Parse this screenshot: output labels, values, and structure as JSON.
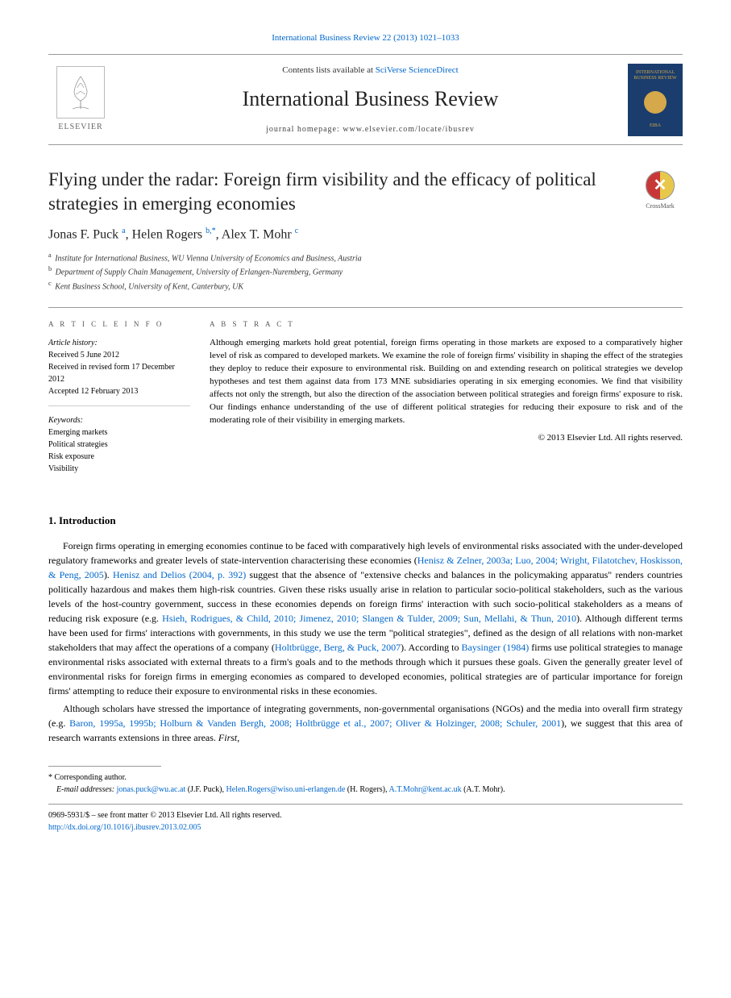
{
  "header": {
    "journal_ref": "International Business Review 22 (2013) 1021–1033",
    "contents_prefix": "Contents lists available at ",
    "contents_link": "SciVerse ScienceDirect",
    "journal_title": "International Business Review",
    "homepage_prefix": "journal homepage: ",
    "homepage_url": "www.elsevier.com/locate/ibusrev",
    "elsevier_label": "ELSEVIER",
    "cover_title": "INTERNATIONAL BUSINESS REVIEW",
    "cover_bottom": "EIBA"
  },
  "crossmark": {
    "label": "CrossMark"
  },
  "article": {
    "title": "Flying under the radar: Foreign firm visibility and the efficacy of political strategies in emerging economies",
    "authors_html": "Jonas F. Puck <sup>a</sup>, Helen Rogers <sup>b,*</sup>, Alex T. Mohr <sup>c</sup>",
    "affiliations": [
      {
        "sup": "a",
        "text": "Institute for International Business, WU Vienna University of Economics and Business, Austria"
      },
      {
        "sup": "b",
        "text": "Department of Supply Chain Management, University of Erlangen-Nuremberg, Germany"
      },
      {
        "sup": "c",
        "text": "Kent Business School, University of Kent, Canterbury, UK"
      }
    ]
  },
  "info": {
    "heading": "A R T I C L E   I N F O",
    "history_label": "Article history:",
    "history_lines": [
      "Received 5 June 2012",
      "Received in revised form 17 December 2012",
      "Accepted 12 February 2013"
    ],
    "keywords_label": "Keywords:",
    "keywords": [
      "Emerging markets",
      "Political strategies",
      "Risk exposure",
      "Visibility"
    ]
  },
  "abstract": {
    "heading": "A B S T R A C T",
    "text": "Although emerging markets hold great potential, foreign firms operating in those markets are exposed to a comparatively higher level of risk as compared to developed markets. We examine the role of foreign firms' visibility in shaping the effect of the strategies they deploy to reduce their exposure to environmental risk. Building on and extending research on political strategies we develop hypotheses and test them against data from 173 MNE subsidiaries operating in six emerging economies. We find that visibility affects not only the strength, but also the direction of the association between political strategies and foreign firms' exposure to risk. Our findings enhance understanding of the use of different political strategies for reducing their exposure to risk and of the moderating role of their visibility in emerging markets.",
    "copyright": "© 2013 Elsevier Ltd. All rights reserved."
  },
  "sections": {
    "intro_heading": "1. Introduction",
    "para1_parts": [
      {
        "t": "text",
        "v": "Foreign firms operating in emerging economies continue to be faced with comparatively high levels of environmental risks associated with the under-developed regulatory frameworks and greater levels of state-intervention characterising these economies ("
      },
      {
        "t": "link",
        "v": "Henisz & Zelner, 2003a; Luo, 2004; Wright, Filatotchev, Hoskisson, & Peng, 2005"
      },
      {
        "t": "text",
        "v": "). "
      },
      {
        "t": "link",
        "v": "Henisz and Delios (2004, p. 392)"
      },
      {
        "t": "text",
        "v": " suggest that the absence of \"extensive checks and balances in the policymaking apparatus\" renders countries politically hazardous and makes them high-risk countries. Given these risks usually arise in relation to particular socio-political stakeholders, such as the various levels of the host-country government, success in these economies depends on foreign firms' interaction with such socio-political stakeholders as a means of reducing risk exposure (e.g. "
      },
      {
        "t": "link",
        "v": "Hsieh, Rodrigues, & Child, 2010; Jimenez, 2010; Slangen & Tulder, 2009; Sun, Mellahi, & Thun, 2010"
      },
      {
        "t": "text",
        "v": "). Although different terms have been used for firms' interactions with governments, in this study we use the term \"political strategies\", defined as the design of all relations with non-market stakeholders that may affect the operations of a company ("
      },
      {
        "t": "link",
        "v": "Holtbrügge, Berg, & Puck, 2007"
      },
      {
        "t": "text",
        "v": "). According to "
      },
      {
        "t": "link",
        "v": "Baysinger (1984)"
      },
      {
        "t": "text",
        "v": " firms use political strategies to manage environmental risks associated with external threats to a firm's goals and to the methods through which it pursues these goals. Given the generally greater level of environmental risks for foreign firms in emerging economies as compared to developed economies, political strategies are of particular importance for foreign firms' attempting to reduce their exposure to environmental risks in these economies."
      }
    ],
    "para2_parts": [
      {
        "t": "text",
        "v": "Although scholars have stressed the importance of integrating governments, non-governmental organisations (NGOs) and the media into overall firm strategy (e.g. "
      },
      {
        "t": "link",
        "v": "Baron, 1995a, 1995b; Holburn & Vanden Bergh, 2008; Holtbrügge et al., 2007; Oliver & Holzinger, 2008; Schuler, 2001"
      },
      {
        "t": "text",
        "v": "), we suggest that this area of research warrants extensions in three areas. "
      },
      {
        "t": "ital",
        "v": "First"
      },
      {
        "t": "text",
        "v": ","
      }
    ]
  },
  "footnotes": {
    "corresponding": "* Corresponding author.",
    "email_label": "E-mail addresses:",
    "emails": [
      {
        "addr": "jonas.puck@wu.ac.at",
        "who": "(J.F. Puck),"
      },
      {
        "addr": "Helen.Rogers@wiso.uni-erlangen.de",
        "who": "(H. Rogers),"
      },
      {
        "addr": "A.T.Mohr@kent.ac.uk",
        "who": "(A.T. Mohr)."
      }
    ]
  },
  "bottom": {
    "issn_line": "0969-5931/$ – see front matter © 2013 Elsevier Ltd. All rights reserved.",
    "doi": "http://dx.doi.org/10.1016/j.ibusrev.2013.02.005"
  },
  "colors": {
    "link": "#0066cc",
    "text": "#000000",
    "cover_bg": "#1a3d6d",
    "cover_accent": "#d4a84b"
  }
}
